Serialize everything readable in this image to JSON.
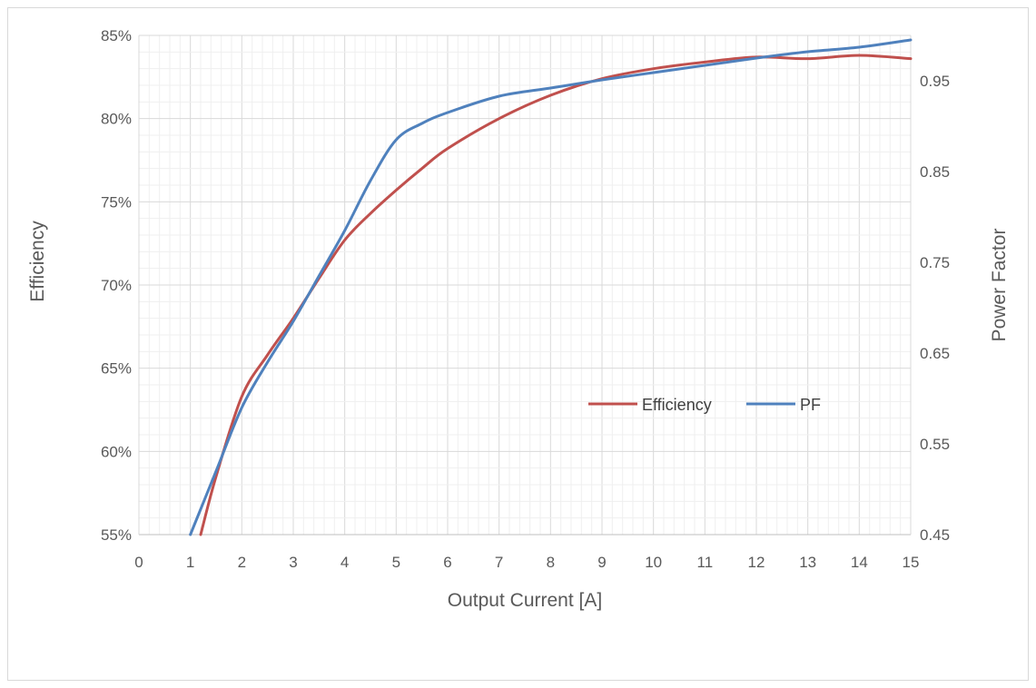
{
  "chart_data": {
    "type": "line",
    "title": "",
    "xlabel": "Output Current [A]",
    "ylabel_left": "Efficiency",
    "ylabel_right": "Power Factor",
    "x_ticks": [
      "0",
      "1",
      "2",
      "3",
      "4",
      "5",
      "6",
      "7",
      "8",
      "9",
      "10",
      "11",
      "12",
      "13",
      "14",
      "15"
    ],
    "y_left_ticks": [
      "55%",
      "60%",
      "65%",
      "70%",
      "75%",
      "80%",
      "85%"
    ],
    "y_right_ticks": [
      "0.45",
      "0.55",
      "0.65",
      "0.75",
      "0.85",
      "0.95"
    ],
    "xlim": [
      0,
      15
    ],
    "ylim_left": [
      55,
      85
    ],
    "ylim_right": [
      0.45,
      1.0
    ],
    "grid": true,
    "legend_position": "center-right",
    "series": [
      {
        "name": "Efficiency",
        "axis": "left",
        "color": "#c0504d",
        "x": [
          1.2,
          1.5,
          2,
          2.5,
          3,
          3.5,
          4,
          4.5,
          5,
          5.5,
          6,
          7,
          8,
          9,
          10,
          11,
          12,
          13,
          14,
          15
        ],
        "y": [
          55.0,
          58.5,
          63.3,
          65.8,
          68.0,
          70.4,
          72.7,
          74.3,
          75.7,
          77.0,
          78.2,
          80.0,
          81.4,
          82.4,
          83.0,
          83.4,
          83.7,
          83.6,
          83.8,
          83.6
        ]
      },
      {
        "name": "PF",
        "axis": "right",
        "color": "#4f81bd",
        "x": [
          1,
          1.5,
          2,
          2.5,
          3,
          3.5,
          4,
          4.5,
          5,
          5.5,
          6,
          7,
          8,
          9,
          10,
          11,
          12,
          13,
          14,
          15
        ],
        "y": [
          0.45,
          0.52,
          0.59,
          0.64,
          0.685,
          0.735,
          0.785,
          0.84,
          0.885,
          0.903,
          0.915,
          0.933,
          0.942,
          0.951,
          0.959,
          0.967,
          0.975,
          0.982,
          0.987,
          0.995
        ]
      }
    ]
  }
}
